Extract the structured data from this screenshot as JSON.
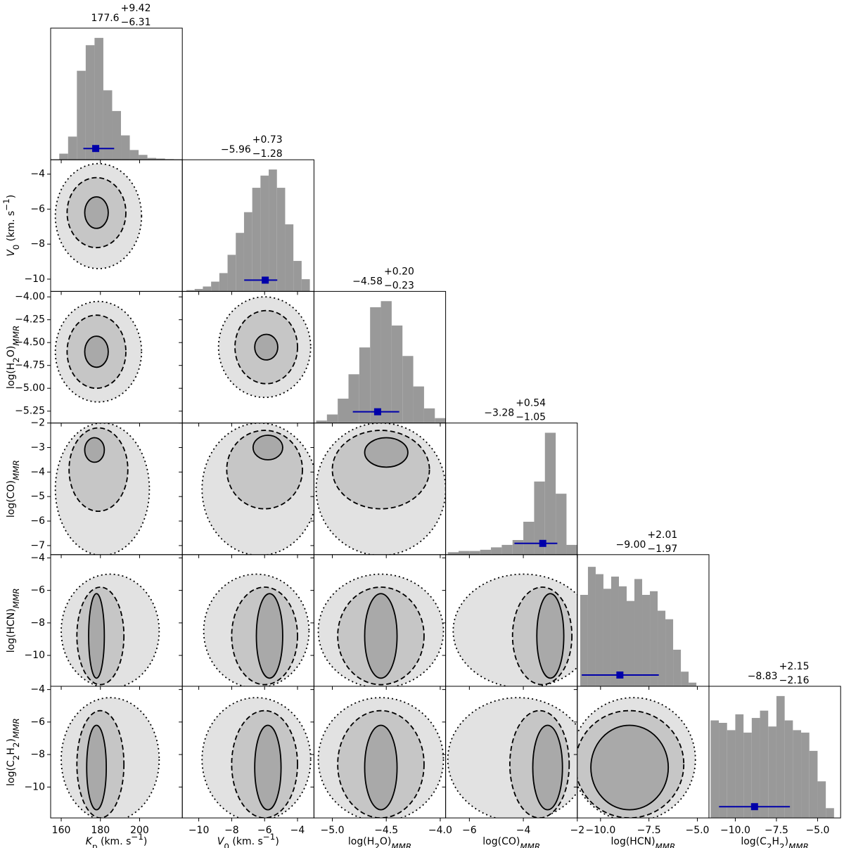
{
  "chart_data": {
    "type": "corner",
    "hist_color": "#999999",
    "hist_ylim": [
      0,
      1.08
    ],
    "title_color": "#0000ff",
    "marker_color": "#0000aa",
    "contour_styles": [
      "solid",
      "dashed",
      "dotted"
    ],
    "contour_fills": [
      "#a9a9a9",
      "#c6c6c6",
      "#e2e2e2"
    ],
    "params": [
      {
        "label": [
          {
            "text": "K",
            "italic": true
          },
          {
            "text": "p",
            "sub": true
          },
          {
            "text": " (km. s"
          },
          {
            "text": "−1",
            "sup": true
          },
          {
            "text": ")"
          }
        ],
        "median": 177.6,
        "median_label": "177.6",
        "plus": 9.42,
        "plus_label": "+9.42",
        "minus": 6.31,
        "minus_label": "−6.31",
        "xlim": [
          154.6,
          221.8
        ],
        "xticks": [
          160,
          180,
          200
        ],
        "bins": [
          159,
          163.5,
          168,
          172.5,
          177,
          181.5,
          186,
          190.5,
          195,
          199.5,
          204,
          208.5,
          213,
          217.5
        ],
        "counts": [
          0.05,
          0.19,
          0.73,
          0.94,
          1.0,
          0.57,
          0.4,
          0.2,
          0.08,
          0.04,
          0.015,
          0.01,
          0.005
        ]
      },
      {
        "label": [
          {
            "text": "V",
            "italic": true
          },
          {
            "text": "0",
            "sub": true
          },
          {
            "text": " (km. s"
          },
          {
            "text": "−1",
            "sup": true
          },
          {
            "text": ")"
          }
        ],
        "median": -5.96,
        "median_label": "−5.96",
        "plus": 0.73,
        "plus_label": "+0.73",
        "minus": 1.28,
        "minus_label": "−1.28",
        "xlim": [
          -11,
          -3
        ],
        "xticks": [
          {
            "value": -10,
            "label": "−10"
          },
          {
            "value": -8,
            "label": "−8"
          },
          {
            "value": -6,
            "label": "−6"
          },
          {
            "value": -4,
            "label": "−4"
          }
        ],
        "ylim": [
          -10.7,
          -3.18
        ],
        "yticks": [
          {
            "value": -4,
            "label": "−4"
          },
          {
            "value": -6,
            "label": "−6"
          },
          {
            "value": -8,
            "label": "−8"
          },
          {
            "value": -10,
            "label": "−10"
          }
        ],
        "bins": [
          -10.75,
          -10.25,
          -9.75,
          -9.25,
          -8.75,
          -8.25,
          -7.75,
          -7.25,
          -6.75,
          -6.25,
          -5.75,
          -5.25,
          -4.75,
          -4.25,
          -3.75,
          -3.25
        ],
        "counts": [
          0.01,
          0.02,
          0.04,
          0.08,
          0.15,
          0.3,
          0.48,
          0.65,
          0.85,
          0.95,
          1.0,
          0.85,
          0.55,
          0.25,
          0.1
        ],
        "contours": [
          [
            [
              178,
              -6.2,
              6,
              0.9
            ],
            [
              178,
              -6.2,
              15,
              2
            ],
            [
              179,
              -6.4,
              22,
              3
            ]
          ]
        ]
      },
      {
        "label": [
          {
            "text": "log(H"
          },
          {
            "text": "2",
            "sub": true
          },
          {
            "text": "O)"
          },
          {
            "text": "MMR",
            "sub": true,
            "italic": true
          }
        ],
        "median": -4.58,
        "median_label": "−4.58",
        "plus": 0.2,
        "plus_label": "+0.20",
        "minus": 0.23,
        "minus_label": "−0.23",
        "xlim": [
          -5.17,
          -3.95
        ],
        "xticks": [
          {
            "value": -5.0,
            "label": "−5.0"
          },
          {
            "value": -4.5,
            "label": "−4.5"
          },
          {
            "value": -4.0,
            "label": "−4.0"
          }
        ],
        "ylim": [
          -5.38,
          -3.94
        ],
        "yticks": [
          {
            "value": -4.0,
            "label": "−4.00"
          },
          {
            "value": -4.25,
            "label": "−4.25"
          },
          {
            "value": -4.5,
            "label": "−4.50"
          },
          {
            "value": -4.75,
            "label": "−4.75"
          },
          {
            "value": -5.0,
            "label": "−5.00"
          },
          {
            "value": -5.25,
            "label": "−5.25"
          }
        ],
        "bins": [
          -5.15,
          -5.05,
          -4.95,
          -4.85,
          -4.75,
          -4.65,
          -4.55,
          -4.45,
          -4.35,
          -4.25,
          -4.15,
          -4.05,
          -3.95
        ],
        "counts": [
          0.02,
          0.07,
          0.2,
          0.4,
          0.62,
          0.95,
          1.0,
          0.8,
          0.55,
          0.3,
          0.12,
          0.04
        ],
        "contours": [
          [
            [
              178,
              -4.6,
              6,
              0.17
            ],
            [
              178,
              -4.6,
              15,
              0.4
            ],
            [
              179,
              -4.6,
              22,
              0.55
            ]
          ],
          [
            [
              -5.9,
              -4.55,
              0.7,
              0.14
            ],
            [
              -5.9,
              -4.55,
              1.9,
              0.4
            ],
            [
              -6.0,
              -4.55,
              2.8,
              0.55
            ]
          ]
        ]
      },
      {
        "label": [
          {
            "text": "log(CO)"
          },
          {
            "text": "MMR",
            "sub": true,
            "italic": true
          }
        ],
        "median": -3.28,
        "median_label": "−3.28",
        "plus": 0.54,
        "plus_label": "+0.54",
        "minus": 1.05,
        "minus_label": "−1.05",
        "xlim": [
          -6.88,
          -2.0
        ],
        "xticks": [
          {
            "value": -6,
            "label": "−6"
          },
          {
            "value": -4,
            "label": "−4"
          },
          {
            "value": -2,
            "label": "−2"
          }
        ],
        "ylim": [
          -7.37,
          -2.0
        ],
        "yticks": [
          {
            "value": -2,
            "label": "−2"
          },
          {
            "value": -3,
            "label": "−3"
          },
          {
            "value": -4,
            "label": "−4"
          },
          {
            "value": -5,
            "label": "−5"
          },
          {
            "value": -6,
            "label": "−6"
          },
          {
            "value": -7,
            "label": "−7"
          }
        ],
        "bins": [
          -6.8,
          -6.4,
          -6.0,
          -5.6,
          -5.2,
          -4.8,
          -4.4,
          -4.0,
          -3.6,
          -3.2,
          -2.8,
          -2.4,
          -2.0
        ],
        "counts": [
          0.02,
          0.03,
          0.03,
          0.04,
          0.06,
          0.08,
          0.12,
          0.27,
          0.6,
          1.0,
          0.5,
          0.08
        ],
        "contours": [
          [
            [
              177,
              -3.1,
              5,
              0.5
            ],
            [
              179,
              -3.9,
              15,
              1.7
            ],
            [
              181,
              -4.7,
              24,
              2.7
            ]
          ],
          [
            [
              -5.8,
              -3.0,
              0.9,
              0.5
            ],
            [
              -6.0,
              -3.9,
              2.3,
              1.6
            ],
            [
              -6.3,
              -4.7,
              3.5,
              2.7
            ]
          ],
          [
            [
              -4.5,
              -3.2,
              0.2,
              0.6
            ],
            [
              -4.55,
              -3.9,
              0.45,
              1.6
            ],
            [
              -4.55,
              -4.7,
              0.6,
              2.7
            ]
          ]
        ]
      },
      {
        "label": [
          {
            "text": "log(HCN)"
          },
          {
            "text": "MMR",
            "sub": true,
            "italic": true
          }
        ],
        "median": -9.0,
        "median_label": "−9.00",
        "plus": 2.01,
        "plus_label": "+2.01",
        "minus": 1.97,
        "minus_label": "−1.97",
        "xlim": [
          -11.2,
          -4.4
        ],
        "xticks": [
          {
            "value": -10,
            "label": "−10.0"
          },
          {
            "value": -7.5,
            "label": "−7.5"
          },
          {
            "value": -5,
            "label": "−5.0"
          }
        ],
        "ylim": [
          -11.9,
          -3.8
        ],
        "yticks": [
          {
            "value": -4,
            "label": "−4"
          },
          {
            "value": -6,
            "label": "−6"
          },
          {
            "value": -8,
            "label": "−8"
          },
          {
            "value": -10,
            "label": "−10"
          }
        ],
        "bins": [
          -11.05,
          -10.65,
          -10.25,
          -9.85,
          -9.45,
          -9.05,
          -8.65,
          -8.25,
          -7.85,
          -7.45,
          -7.05,
          -6.65,
          -6.25,
          -5.85,
          -5.45,
          -5.05
        ],
        "counts": [
          0.75,
          0.98,
          0.92,
          0.8,
          0.9,
          0.82,
          0.7,
          0.88,
          0.75,
          0.78,
          0.62,
          0.55,
          0.3,
          0.12,
          0.03
        ],
        "contours": [
          [
            [
              178,
              -8.8,
              4,
              2.6
            ],
            [
              180,
              -8.8,
              12,
              3.0
            ],
            [
              185,
              -8.5,
              25,
              3.5
            ]
          ],
          [
            [
              -5.7,
              -8.8,
              0.8,
              2.6
            ],
            [
              -6.0,
              -8.8,
              2.0,
              3.0
            ],
            [
              -6.5,
              -8.5,
              3.2,
              3.5
            ]
          ],
          [
            [
              -4.55,
              -8.8,
              0.15,
              2.6
            ],
            [
              -4.55,
              -8.8,
              0.4,
              3.0
            ],
            [
              -4.55,
              -8.5,
              0.58,
              3.5
            ]
          ],
          [
            [
              -3.0,
              -8.8,
              0.5,
              2.6
            ],
            [
              -3.3,
              -8.8,
              1.1,
              3.0
            ],
            [
              -4.0,
              -8.5,
              2.6,
              3.5
            ]
          ]
        ]
      },
      {
        "label": [
          {
            "text": "log(C"
          },
          {
            "text": "2",
            "sub": true
          },
          {
            "text": "H"
          },
          {
            "text": "2",
            "sub": true
          },
          {
            "text": ")"
          },
          {
            "text": "MMR",
            "sub": true,
            "italic": true
          }
        ],
        "median": -8.83,
        "median_label": "−8.83",
        "plus": 2.15,
        "plus_label": "+2.15",
        "minus": 2.16,
        "minus_label": "−2.16",
        "xlim": [
          -11.6,
          -3.6
        ],
        "xticks": [
          {
            "value": -10,
            "label": "−10.0"
          },
          {
            "value": -7.5,
            "label": "−7.5"
          },
          {
            "value": -5,
            "label": "−5.0"
          }
        ],
        "ylim": [
          -11.9,
          -3.8
        ],
        "yticks": [
          {
            "value": -4,
            "label": "−4"
          },
          {
            "value": -6,
            "label": "−6"
          },
          {
            "value": -8,
            "label": "−8"
          },
          {
            "value": -10,
            "label": "−10"
          }
        ],
        "bins": [
          -11.5,
          -11.0,
          -10.5,
          -10.0,
          -9.5,
          -9.0,
          -8.5,
          -8.0,
          -7.5,
          -7.0,
          -6.5,
          -6.0,
          -5.5,
          -5.0,
          -4.5,
          -4.0
        ],
        "counts": [
          0.8,
          0.78,
          0.72,
          0.85,
          0.7,
          0.82,
          0.88,
          0.75,
          1.0,
          0.8,
          0.72,
          0.7,
          0.55,
          0.3,
          0.08
        ],
        "contours": [
          [
            [
              178,
              -8.8,
              5,
              2.6
            ],
            [
              180,
              -8.6,
              12,
              3.3
            ],
            [
              185,
              -8.3,
              25,
              3.8
            ]
          ],
          [
            [
              -5.8,
              -8.8,
              0.8,
              2.6
            ],
            [
              -6.0,
              -8.6,
              2.0,
              3.3
            ],
            [
              -6.5,
              -8.3,
              3.3,
              3.8
            ]
          ],
          [
            [
              -4.55,
              -8.8,
              0.15,
              2.6
            ],
            [
              -4.55,
              -8.6,
              0.4,
              3.3
            ],
            [
              -4.55,
              -8.3,
              0.58,
              3.8
            ]
          ],
          [
            [
              -3.1,
              -8.8,
              0.55,
              2.6
            ],
            [
              -3.4,
              -8.6,
              1.1,
              3.3
            ],
            [
              -4.2,
              -8.3,
              2.6,
              3.8
            ]
          ],
          [
            [
              -8.5,
              -8.8,
              2.0,
              2.6
            ],
            [
              -8.5,
              -8.6,
              2.8,
              3.3
            ],
            [
              -8.3,
              -8.3,
              3.2,
              3.8
            ]
          ]
        ]
      }
    ]
  }
}
